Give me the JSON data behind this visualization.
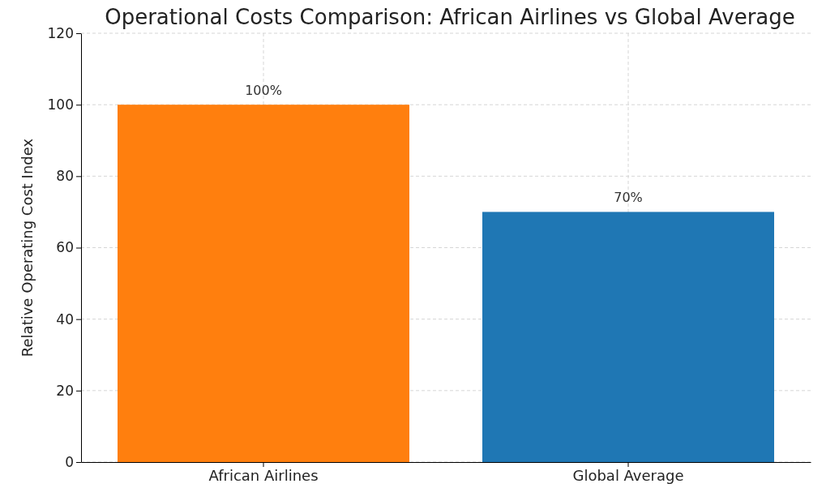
{
  "chart_data": {
    "type": "bar",
    "title": "Operational Costs Comparison: African Airlines vs Global Average",
    "ylabel": "Relative Operating Cost Index",
    "categories": [
      "African Airlines",
      "Global Average"
    ],
    "values": [
      100,
      70
    ],
    "colors": [
      "#ff7f0e",
      "#1f77b4"
    ],
    "value_labels": [
      "100%",
      "70%"
    ],
    "ylim": [
      0,
      120
    ],
    "yticks": [
      0,
      20,
      40,
      60,
      80,
      100,
      120
    ],
    "grid": true
  }
}
